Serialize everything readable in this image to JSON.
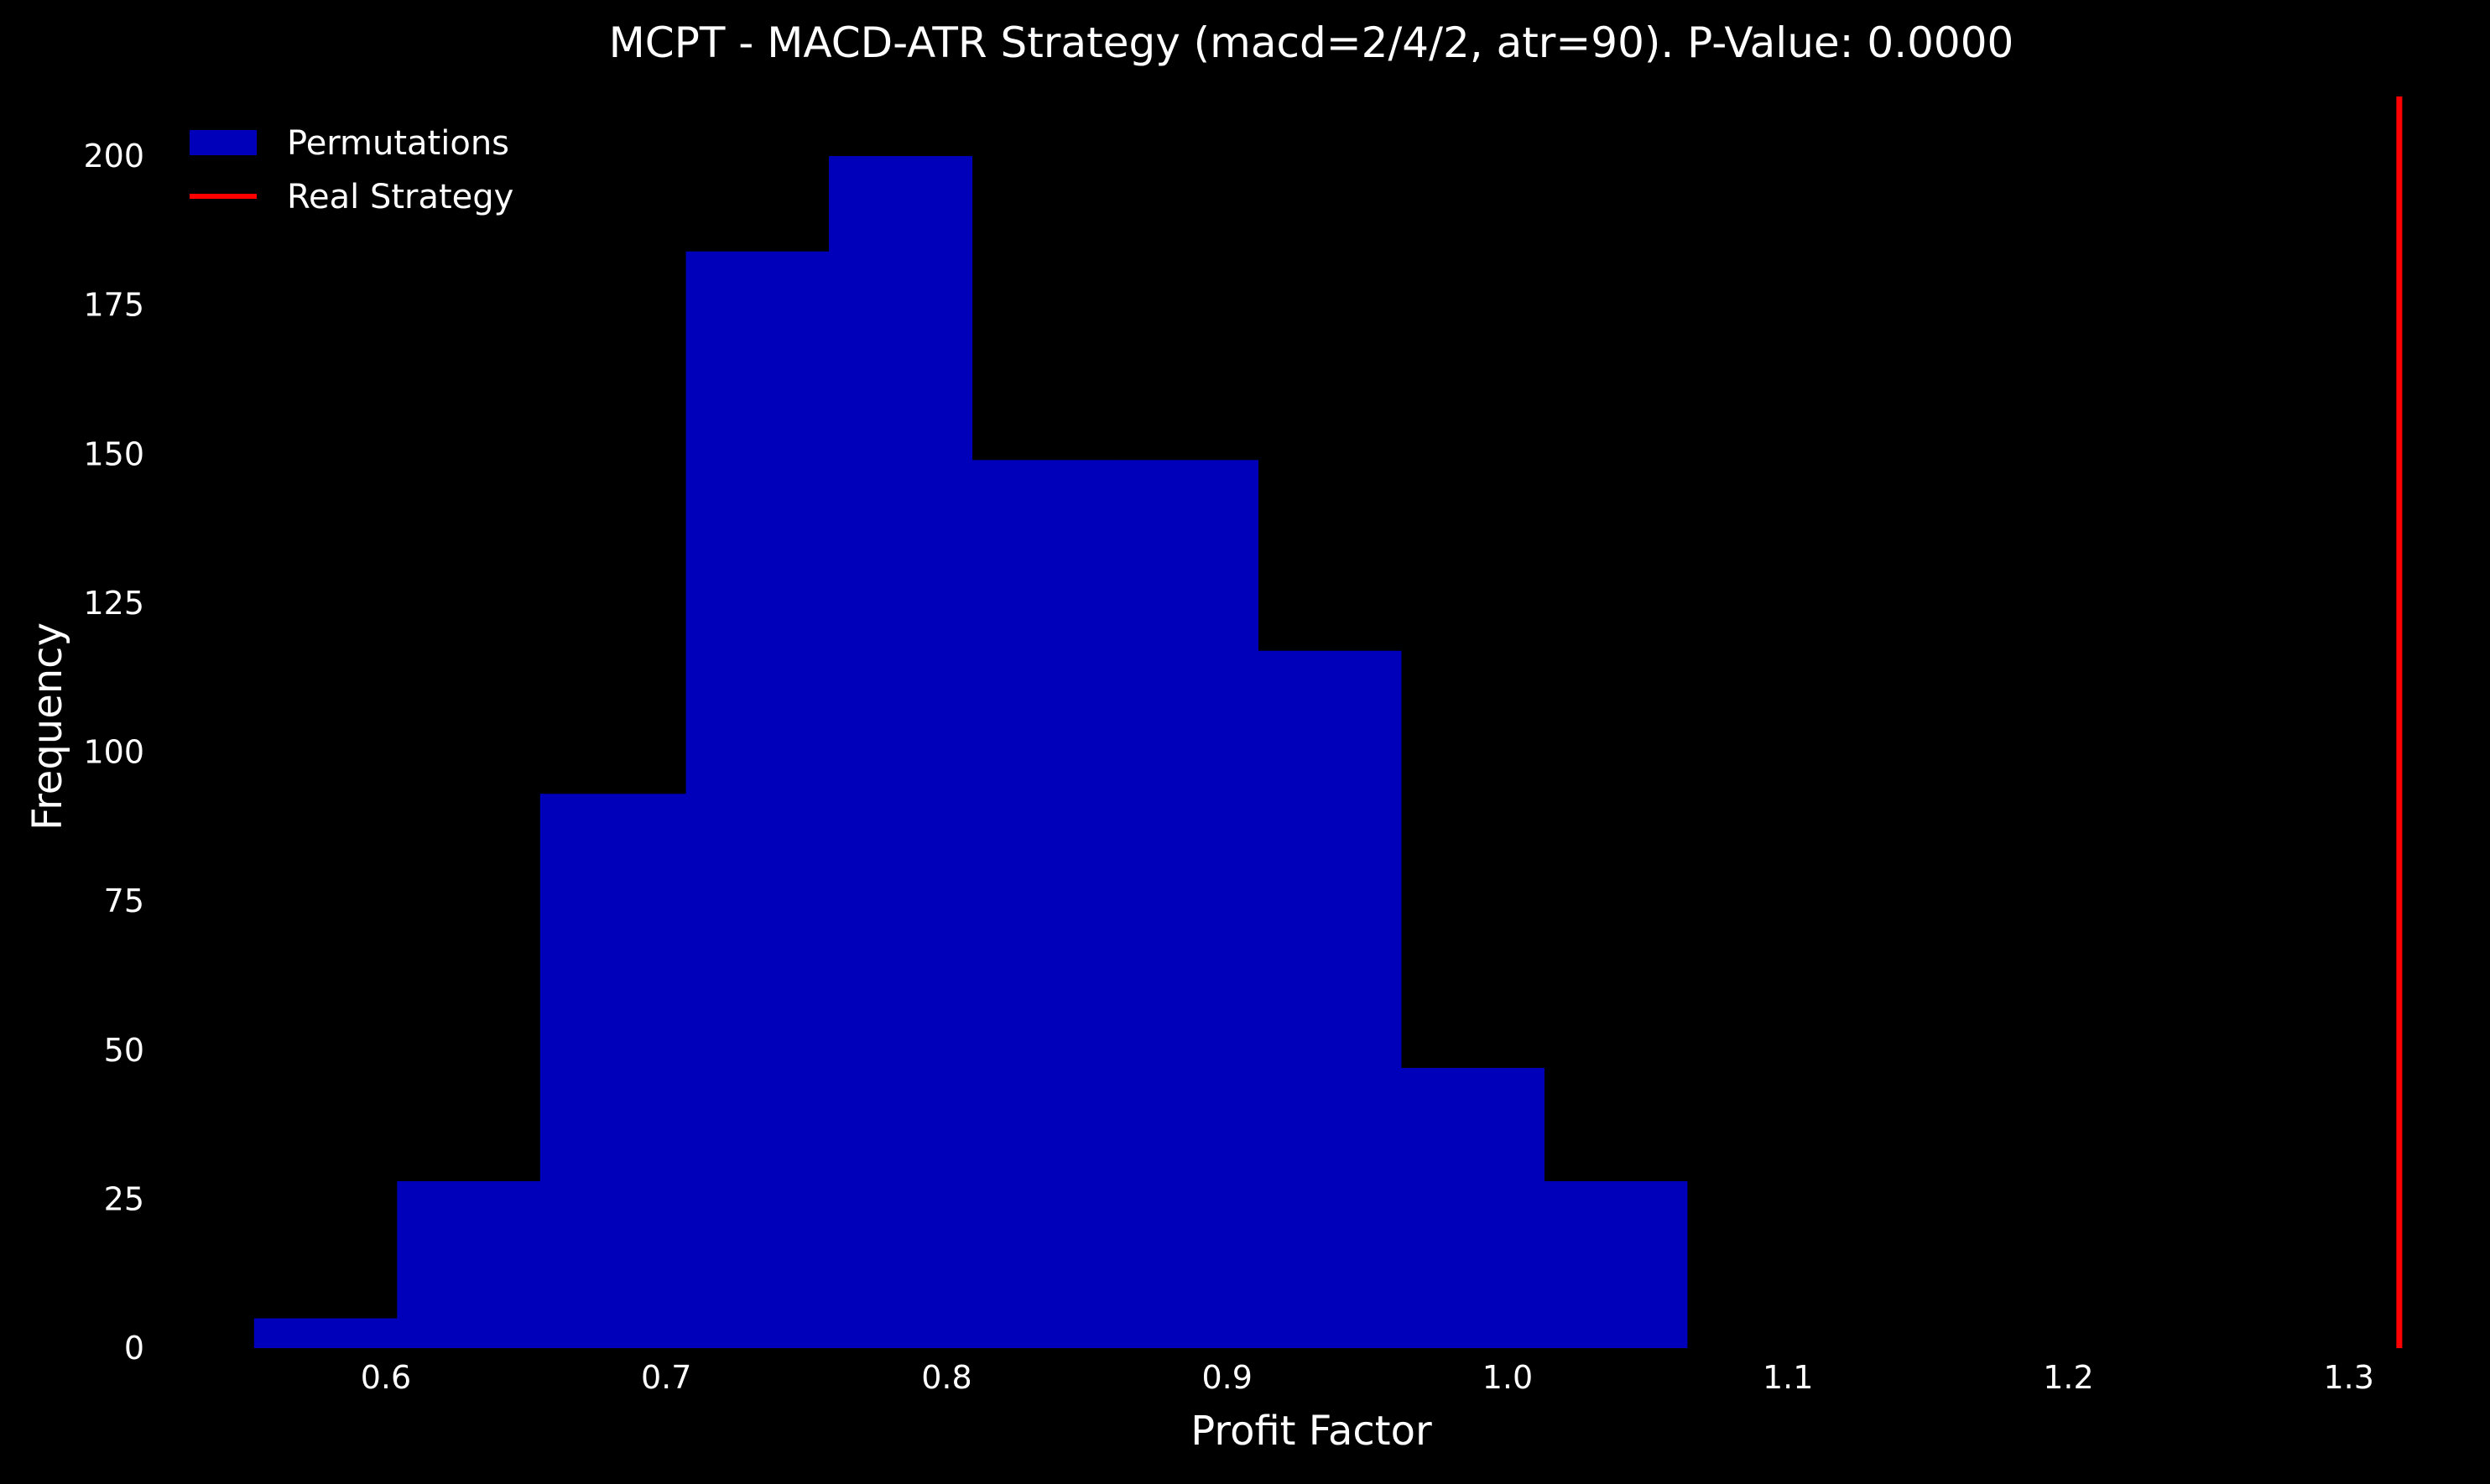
{
  "chart_data": {
    "type": "bar",
    "title": "MCPT - MACD-ATR Strategy (macd=2/4/2, atr=90). P-Value: 0.0000",
    "xlabel": "Profit Factor",
    "ylabel": "Frequency",
    "xlim": [
      0.53,
      1.33
    ],
    "ylim": [
      0,
      210
    ],
    "xticks": [
      "0.6",
      "0.7",
      "0.8",
      "0.9",
      "1.0",
      "1.1",
      "1.2",
      "1.3"
    ],
    "yticks": [
      "0",
      "25",
      "50",
      "75",
      "100",
      "125",
      "150",
      "175",
      "200"
    ],
    "grid": false,
    "legend_position": "top-left",
    "series": [
      {
        "name": "Permutations",
        "kind": "histogram",
        "color": "#0000bb",
        "bin_edges": [
          0.553,
          0.604,
          0.655,
          0.707,
          0.758,
          0.809,
          0.86,
          0.911,
          0.962,
          1.013,
          1.064
        ],
        "values": [
          5,
          28,
          93,
          184,
          200,
          149,
          149,
          117,
          47,
          28
        ]
      },
      {
        "name": "Real Strategy",
        "kind": "vline",
        "color": "#ff0000",
        "x": 1.318
      }
    ]
  }
}
